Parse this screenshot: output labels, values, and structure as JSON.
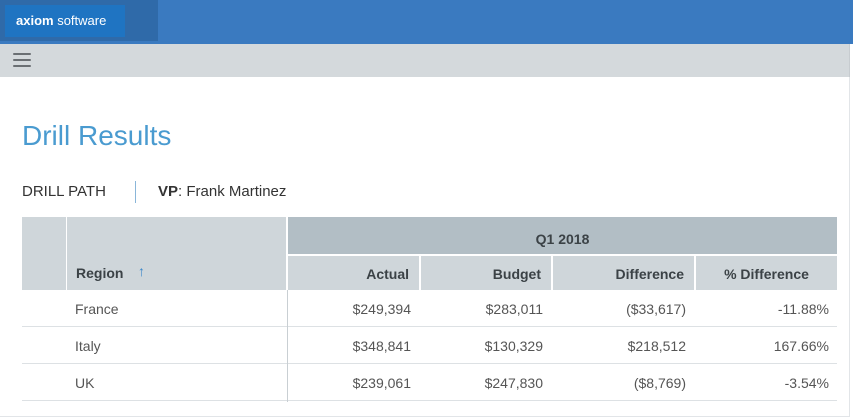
{
  "app": {
    "brand_bold": "axiom",
    "brand_light": " software"
  },
  "page": {
    "title": "Drill Results",
    "drill_path_label": "DRILL PATH",
    "vp_label": "VP",
    "vp_value": ": Frank Martinez"
  },
  "table": {
    "group_header": "Q1 2018",
    "region_header": "Region",
    "sort_icon": "↑",
    "columns": [
      "Actual",
      "Budget",
      "Difference",
      "% Difference"
    ],
    "rows": [
      {
        "region": "France",
        "actual": "$249,394",
        "budget": "$283,011",
        "difference": "($33,617)",
        "pct": "-11.88%"
      },
      {
        "region": "Italy",
        "actual": "$348,841",
        "budget": "$130,329",
        "difference": "$218,512",
        "pct": "167.66%"
      },
      {
        "region": "UK",
        "actual": "$239,061",
        "budget": "$247,830",
        "difference": "($8,769)",
        "pct": "-3.54%"
      }
    ]
  },
  "colors": {
    "topbar": "#3a7ac0",
    "title": "#4a9bd0",
    "header": "#cfd6da",
    "group_header": "#b2bec5"
  },
  "icons": {
    "menu": "hamburger-menu-icon",
    "sort": "sort-ascending-icon"
  }
}
